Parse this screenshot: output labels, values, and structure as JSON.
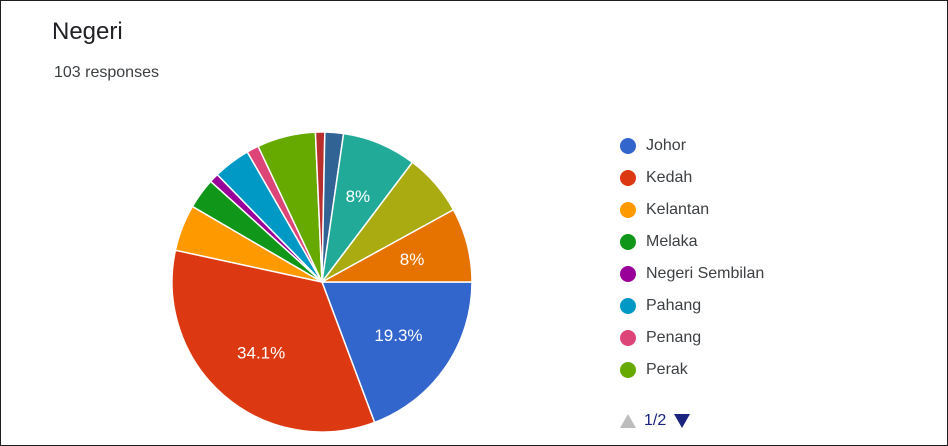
{
  "question_title": "Negeri",
  "response_count": "103 responses",
  "pager": {
    "label": "1/2"
  },
  "chart_data": {
    "type": "pie",
    "slices": [
      {
        "label": "Johor",
        "value": 19.3,
        "color": "#3366cc",
        "display": "19.3%"
      },
      {
        "label": "Kedah",
        "value": 34.1,
        "color": "#dc3912",
        "display": "34.1%"
      },
      {
        "label": "Kelantan",
        "value": 5.0,
        "color": "#ff9900",
        "display": ""
      },
      {
        "label": "Melaka",
        "value": 3.3,
        "color": "#109618",
        "display": ""
      },
      {
        "label": "Negeri Sembilan",
        "value": 1.0,
        "color": "#990099",
        "display": ""
      },
      {
        "label": "Pahang",
        "value": 4.0,
        "color": "#0099c6",
        "display": ""
      },
      {
        "label": "Penang",
        "value": 1.3,
        "color": "#dd4477",
        "display": ""
      },
      {
        "label": "Perak",
        "value": 6.3,
        "color": "#66aa00",
        "display": ""
      },
      {
        "label": "",
        "value": 1.0,
        "color": "#b82e2e",
        "display": ""
      },
      {
        "label": "",
        "value": 2.0,
        "color": "#316395",
        "display": ""
      },
      {
        "label": "",
        "value": 8.0,
        "color": "#22aa99",
        "display": "8%"
      },
      {
        "label": "",
        "value": 6.7,
        "color": "#aaaa11",
        "display": ""
      },
      {
        "label": "",
        "value": 8.0,
        "color": "#e67300",
        "display": "8%"
      }
    ],
    "legend_position": "right"
  }
}
